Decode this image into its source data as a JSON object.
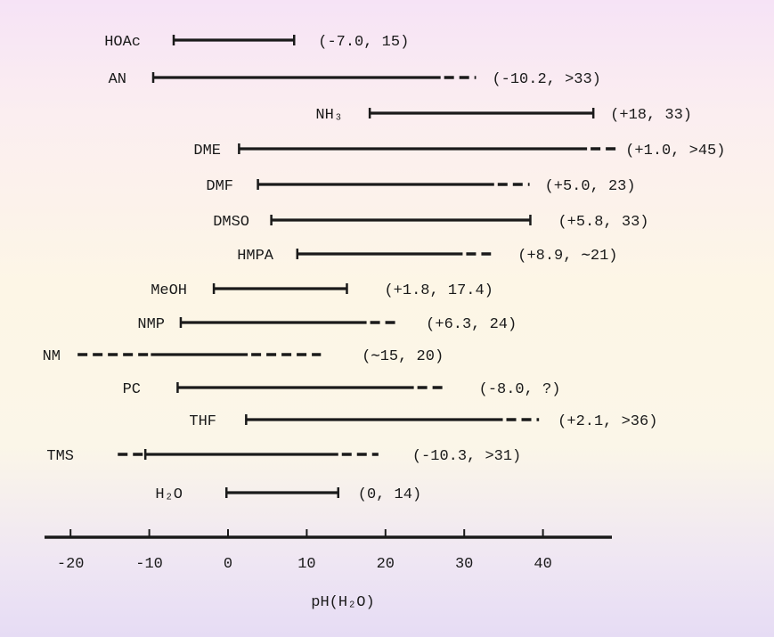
{
  "chart_data": {
    "type": "range",
    "title": "",
    "xlabel": "pH(H₂O)",
    "ylabel": "",
    "xlim": [
      -23,
      49
    ],
    "xticks": [
      -20,
      -10,
      0,
      10,
      20,
      30,
      40
    ],
    "xtick_labels": [
      "-20",
      "-10",
      "0",
      "10",
      "20",
      "30",
      "40"
    ],
    "grid": false,
    "colors": {
      "ink": "#1a1a1a"
    },
    "rows": [
      {
        "name": "HOAc",
        "annotation": "(-7.0, 15)",
        "start": -6.9,
        "end": 8.4
      },
      {
        "name": "AN",
        "annotation": "(-10.2, >33)",
        "start": -9.5,
        "end": 27.0,
        "dashed_end": 31.5
      },
      {
        "name": "NH₃",
        "annotation": "(+18, 33)",
        "start": 18.0,
        "end": 46.4
      },
      {
        "name": "DME",
        "annotation": "(+1.0, >45)",
        "start": 1.4,
        "end": 45.6,
        "dashed_end": 49.8
      },
      {
        "name": "DMF",
        "annotation": "(+5.0, 23)",
        "start": 3.8,
        "end": 33.8,
        "dashed_end": 38.3
      },
      {
        "name": "DMSO",
        "annotation": "(+5.8, 33)",
        "start": 5.5,
        "end": 38.4
      },
      {
        "name": "HMPA",
        "annotation": "(+8.9, ∼21)",
        "start": 8.8,
        "end": 29.8,
        "dashed_end": 33.4
      },
      {
        "name": "MeOH",
        "annotation": "(+1.8, 17.4)",
        "start": -1.8,
        "end": 15.1
      },
      {
        "name": "NMP",
        "annotation": "(+6.3, 24)",
        "start": -6.0,
        "end": 17.6,
        "dashed_end": 21.4
      },
      {
        "name": "NM",
        "annotation": "(∼15, 20)",
        "dashed_start": -19.1,
        "start": -9.8,
        "end": 2.5,
        "dashed_end": 11.8,
        "no_caps": true
      },
      {
        "name": "PC",
        "annotation": "(-8.0, ?)",
        "start": -6.4,
        "end": 23.6,
        "dashed_end": 27.9
      },
      {
        "name": "THF",
        "annotation": "(+2.1, >36)",
        "start": 2.3,
        "end": 34.9,
        "dashed_end": 39.5
      },
      {
        "name": "TMS",
        "annotation": "(-10.3, >31)",
        "dashed_start": -14.0,
        "start": -10.5,
        "end": 14.0,
        "dashed_end": 19.1
      },
      {
        "name": "H₂O",
        "annotation": "(0, 14)",
        "start": -0.2,
        "end": 14.0
      }
    ]
  }
}
